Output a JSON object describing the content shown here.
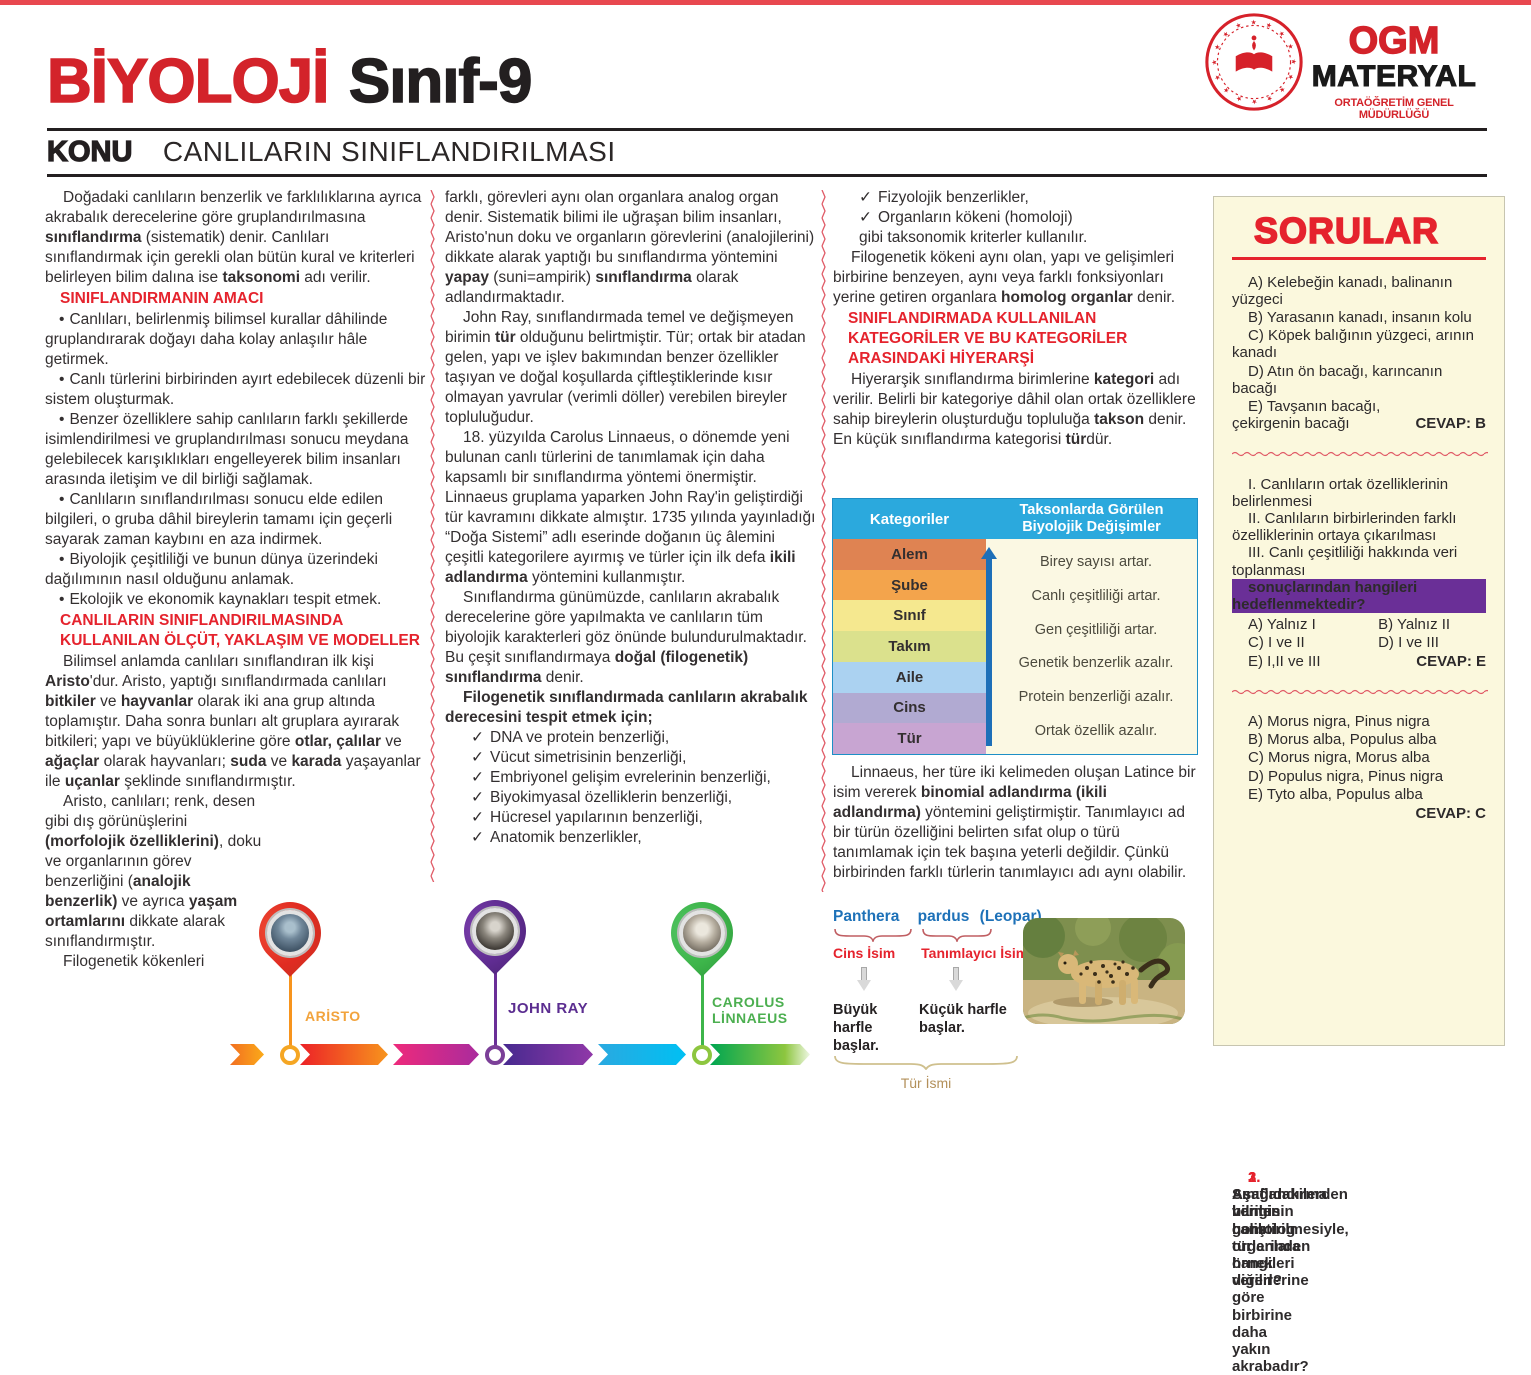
{
  "colors": {
    "accent_red": "#e5232d",
    "title_red": "#d3232a",
    "table_header_bg": "#2ba9dd",
    "table_arrow": "#1d6fb8",
    "sidebar_bg": "#fbf8dd",
    "binomial_blue": "#1d71b8",
    "tur_ismi_tan": "#b3905a"
  },
  "icons": {
    "check": "✓",
    "bullet": "•"
  },
  "header": {
    "title_red": "BİYOLOJİ",
    "title_black": "Sınıf-9",
    "konu_label": "KONU",
    "konu_title": "CANLILARIN SINIFLANDIRILMASI"
  },
  "logo": {
    "ogm": "OGM",
    "materyal": "MATERYAL",
    "sub": "ORTAÖĞRETİM GENEL MÜDÜRLÜĞÜ"
  },
  "col1": {
    "p1": [
      "Doğadaki canlıların benzerlik ve farklılıklarına ayrıca akrabalık derecelerine göre gruplandırılmasına ",
      {
        "b": "sınıflandırma"
      },
      " (sistematik) denir. Canlıları sınıflandırmak için gerekli olan bütün kural ve kriterleri belirleyen bilim dalına ise ",
      {
        "b": "taksonomi"
      },
      " adı verilir."
    ],
    "h1": "SINIFLANDIRMANIN AMACI",
    "bullets": [
      "Canlıları, belirlenmiş bilimsel kurallar dâhilinde gruplandırarak doğayı daha kolay anlaşılır hâle getirmek.",
      "Canlı türlerini birbirinden ayırt edebilecek düzenli bir sistem oluşturmak.",
      "Benzer özelliklere sahip canlıların farklı şekillerde isimlendirilmesi ve gruplandırılması sonucu meydana gelebilecek karışıklıkları engelleyerek bilim insanları arasında iletişim ve dil birliği sağlamak.",
      "Canlıların sınıflandırılması sonucu elde edilen bilgileri, o gruba dâhil bireylerin tamamı için geçerli sayarak zaman kaybını en aza indirmek.",
      "Biyolojik çeşitliliği ve bunun dünya üzerindeki dağılımının nasıl olduğunu anlamak.",
      "Ekolojik ve ekonomik kaynakları tespit etmek."
    ],
    "h2": "CANLILARIN SINIFLANDIRILMASINDA KULLANILAN ÖLÇÜT, YAKLAŞIM VE MODELLER",
    "p2": [
      "Bilimsel anlamda canlıları sınıflandıran ilk kişi ",
      {
        "b": "Aristo"
      },
      "'dur. Aristo, yaptığı sınıflandırmada canlıları ",
      {
        "b": "bitkiler"
      },
      " ve ",
      {
        "b": "hayvanlar"
      },
      " olarak iki ana grup altında toplamıştır. Daha sonra bunları alt gruplara ayırarak bitkileri; yapı ve büyüklüklerine göre ",
      {
        "b": "otlar, çalılar"
      },
      " ve ",
      {
        "b": "ağaçlar"
      },
      " olarak hayvanları; ",
      {
        "b": "suda"
      },
      " ve ",
      {
        "b": "karada"
      },
      " yaşayanlar ile ",
      {
        "b": "uçanlar"
      },
      " şeklinde sınıflandırmıştır."
    ],
    "p3": [
      "Aristo, canlıları; renk, desen gibi dış görünüşlerini ",
      {
        "b": "(morfolojik özelliklerini)"
      },
      ", doku ve organlarının görev benzerliğini (",
      {
        "b": "analojik benzerlik)"
      },
      " ve ayrıca ",
      {
        "b": "yaşam ortamlarını"
      },
      " dikkate alarak sınıflandırmıştır."
    ],
    "p4": "Filogenetik kökenleri"
  },
  "col2": {
    "p1": [
      "farklı, görevleri aynı olan organlara analog organ denir. Sistematik bilimi ile uğraşan bilim insanları, Aristo'nun doku ve organların görevlerini (analojilerini) dikkate alarak yaptığı bu sınıflandırma yöntemini ",
      {
        "b": "yapay"
      },
      " (suni=ampirik) ",
      {
        "b": "sınıflandırma"
      },
      " olarak adlandırmaktadır."
    ],
    "p2": [
      "John Ray, sınıflandırmada temel ve değişmeyen birimin ",
      {
        "b": "tür"
      },
      " olduğunu belirtmiştir. Tür; ortak bir atadan gelen, yapı ve işlev bakımından benzer özellikler taşıyan ve doğal koşullarda çiftleştiklerinde kısır olmayan yavrular (verimli döller) verebilen bireyler topluluğudur."
    ],
    "p3": [
      "18. yüzyılda Carolus Linnaeus, o dönemde yeni bulunan canlı türlerini de tanımlamak için daha kapsamlı bir sınıflandırma yöntemi önermiştir. Linnaeus gruplama yaparken John Ray'in geliştirdiği tür kavramını dikkate almıştır. 1735 yılında yayınladığı “Doğa Sistemi” adlı eserinde doğanın üç âlemini çeşitli kategorilere ayırmış ve türler için ilk defa ",
      {
        "b": "ikili adlandırma"
      },
      " yöntemini kullanmıştır."
    ],
    "p4": [
      "Sınıflandırma günümüzde, canlıların akrabalık derecelerine göre yapılmakta ve canlıların tüm biyolojik karakterleri göz önünde bulundurulmaktadır. Bu çeşit sınıflandırmaya ",
      {
        "b": "doğal (filogenetik) sınıflandırma"
      },
      " denir."
    ],
    "lead": "Filogenetik sınıflandırmada canlıların akrabalık derecesini tespit etmek için;",
    "checks": [
      "DNA ve protein benzerliği,",
      "Vücut simetrisinin benzerliği,",
      "Embriyonel gelişim evrelerinin benzerliği,",
      "Biyokimyasal özelliklerin benzerliği,",
      "Hücresel yapılarının benzerliği,",
      "Anatomik benzerlikler,"
    ]
  },
  "col3": {
    "checks": [
      "Fizyolojik benzerlikler,",
      "Organların kökeni (homoloji)"
    ],
    "check_note": "gibi taksonomik kriterler kullanılır.",
    "p1": [
      "Filogenetik kökeni aynı olan, yapı ve gelişimleri birbirine benzeyen, aynı veya farklı fonksiyonları yerine getiren organlara ",
      {
        "b": "homolog organlar"
      },
      " denir."
    ],
    "h1": "SINIFLANDIRMADA KULLANILAN KATEGORİLER VE BU KATEGORİLER ARASINDAKİ HİYERARŞİ",
    "p2": [
      "Hiyerarşik sınıflandırma birimlerine ",
      {
        "b": "kategori"
      },
      " adı verilir. Belirli bir kategoriye dâhil olan ortak özelliklere sahip bireylerin oluşturduğu topluluğa ",
      {
        "b": "takson"
      },
      " denir. En küçük sınıflandırma kategorisi ",
      {
        "b": "tür"
      },
      "dür."
    ],
    "p3": [
      "Linnaeus, her türe iki kelimeden oluşan Latince bir isim vererek ",
      {
        "b": "binomial adlandırma (ikili adlandırma)"
      },
      " yöntemini geliştirmiştir. Tanımlayıcı ad bir türün özelliğini belirten sıfat olup o türü tanımlamak için tek başına yeterli değildir. Çünkü birbirinden farklı türlerin tanımlayıcı adı aynı olabilir."
    ]
  },
  "table": {
    "header_left": "Kategoriler",
    "header_right": "Taksonlarda Görülen Biyolojik Değişimler",
    "categories": [
      {
        "label": "Alem",
        "color": "#df8352"
      },
      {
        "label": "Şube",
        "color": "#f3a44c"
      },
      {
        "label": "Sınıf",
        "color": "#f5e88f"
      },
      {
        "label": "Takım",
        "color": "#dbe18d"
      },
      {
        "label": "Aile",
        "color": "#abd2f1"
      },
      {
        "label": "Cins",
        "color": "#b1aad2"
      },
      {
        "label": "Tür",
        "color": "#c8a5d2"
      }
    ],
    "changes": [
      "Birey sayısı artar.",
      "Canlı çeşitliliği artar.",
      "Gen çeşitliliği artar.",
      "Genetik benzerlik azalır.",
      "Protein benzerliği azalır.",
      "Ortak özellik azalır."
    ]
  },
  "binomial": {
    "genus": "Panthera",
    "species": "pardus",
    "common": "(Leopar)",
    "genus_label": "Cins İsim",
    "species_label": "Tanımlayıcı İsim",
    "genus_rule": "Büyük harfle başlar.",
    "species_rule": "Küçük harfle başlar.",
    "bottom_label": "Tür İsmi"
  },
  "timeline": {
    "items": [
      {
        "name": "ARİSTO"
      },
      {
        "name": "JOHN RAY"
      },
      {
        "name": "CAROLUS LİNNAEUS"
      }
    ]
  },
  "sorular": {
    "title": "SORULAR",
    "questions": [
      {
        "num": "1.",
        "stem": "Aşağıdakilerden hangisi homolog organlara örnek verilir?",
        "options": [
          "A) Kelebeğin kanadı, balinanın yüzgeci",
          "B) Yarasanın kanadı, insanın kolu",
          "C) Köpek balığının yüzgeci, arının kanadı",
          "D) Atın ön bacağı, karıncanın bacağı",
          "E) Tavşanın bacağı, çekirgenin bacağı"
        ],
        "answer": "CEVAP: B"
      },
      {
        "num": "2.",
        "stem": "Sınıflandırma biliminin geliştirilmesiyle,",
        "items": [
          "I. Canlıların ortak özelliklerinin belirlenmesi",
          "II. Canlıların birbirlerinden farklı özelliklerinin ortaya çıkarılması",
          "III. Canlı çeşitliliği hakkında veri toplanması"
        ],
        "stem2": "sonuçlarından hangileri hedeflenmektedir?",
        "options": [
          "A) Yalnız I",
          "B) Yalnız II",
          "C) I ve II",
          "D) I ve III",
          "E) I,II ve III"
        ],
        "answer": "CEVAP: E"
      },
      {
        "num": "3.",
        "stem": "Aşağıda verilen canlı türlerinden hangileri diğerlerine göre birbirine daha yakın akrabadır?",
        "options": [
          "A) Morus nigra, Pinus nigra",
          "B) Morus alba, Populus alba",
          "C) Morus nigra, Morus alba",
          "D) Populus nigra, Pinus nigra",
          "E) Tyto alba, Populus alba"
        ],
        "answer": "CEVAP: C"
      }
    ]
  }
}
